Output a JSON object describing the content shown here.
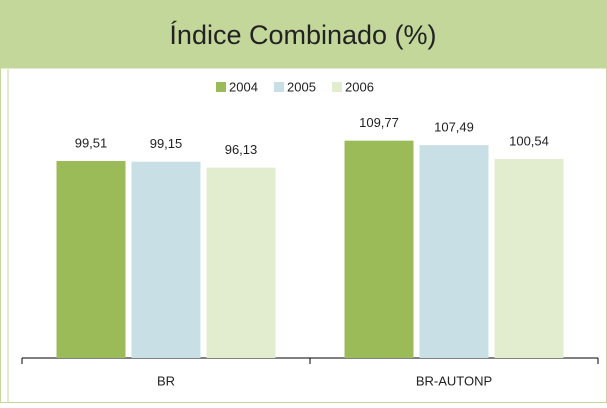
{
  "chart_data": {
    "type": "bar",
    "title": "Índice Combinado (%)",
    "categories": [
      "BR",
      "BR-AUTONP"
    ],
    "series": [
      {
        "name": "2004",
        "color": "#9bbb59",
        "values": [
          99.51,
          109.77
        ],
        "value_labels": [
          "99,51",
          "109,77"
        ]
      },
      {
        "name": "2005",
        "color": "#c8dfe6",
        "values": [
          99.15,
          107.49
        ],
        "value_labels": [
          "99,15",
          "107,49"
        ]
      },
      {
        "name": "2006",
        "color": "#e2ecce",
        "values": [
          96.13,
          100.54
        ],
        "value_labels": [
          "96,13",
          "100,54"
        ]
      }
    ],
    "ylim": [
      0,
      120
    ],
    "legend": "top"
  }
}
